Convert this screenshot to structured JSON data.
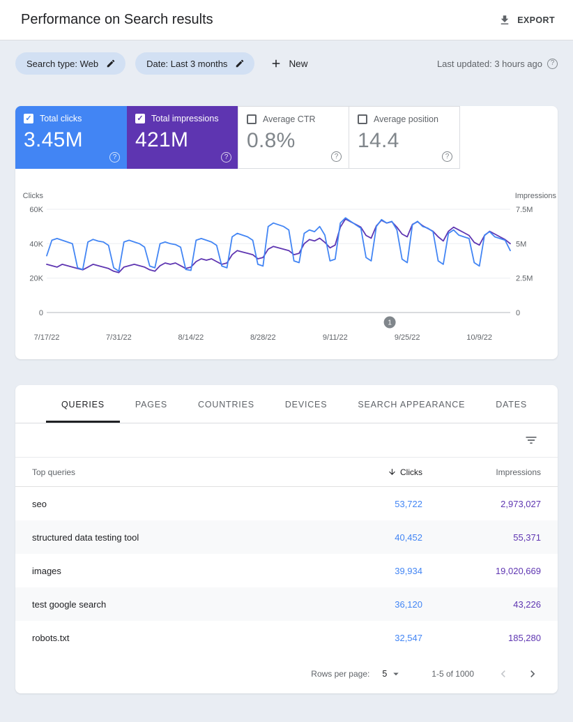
{
  "header": {
    "title": "Performance on Search results",
    "export_label": "EXPORT"
  },
  "filters": {
    "search_type_chip": "Search type: Web",
    "date_chip": "Date: Last 3 months",
    "new_label": "New",
    "last_updated": "Last updated: 3 hours ago"
  },
  "metrics": [
    {
      "label": "Total clicks",
      "value": "3.45M",
      "checked": true,
      "color": "#4285f4"
    },
    {
      "label": "Total impressions",
      "value": "421M",
      "checked": true,
      "color": "#5e35b1"
    },
    {
      "label": "Average CTR",
      "value": "0.8%",
      "checked": false
    },
    {
      "label": "Average position",
      "value": "14.4",
      "checked": false
    }
  ],
  "chart_data": {
    "type": "line",
    "title": "Clicks and impressions over last 3 months (daily)",
    "x_labels": [
      "7/17/22",
      "7/31/22",
      "8/14/22",
      "8/28/22",
      "9/11/22",
      "9/25/22",
      "10/9/22"
    ],
    "x_label_indices": [
      0,
      14,
      28,
      42,
      56,
      70,
      84
    ],
    "left_axis": {
      "title": "Clicks",
      "ticks": [
        "0",
        "20K",
        "40K",
        "60K"
      ],
      "max": 60,
      "unit": "thousands"
    },
    "right_axis": {
      "title": "Impressions",
      "ticks": [
        "0",
        "2.5M",
        "5M",
        "7.5M"
      ],
      "max": 7.5,
      "unit": "millions"
    },
    "grid": true,
    "legend": "none",
    "series": [
      {
        "name": "Total clicks",
        "color": "#4285f4",
        "unit": "thousands of clicks per day",
        "values": [
          33,
          42,
          43,
          42,
          41,
          40,
          26,
          25,
          41,
          42.5,
          41.5,
          41,
          39,
          26,
          24,
          41,
          42,
          41,
          40,
          38,
          27,
          26,
          40,
          41,
          40,
          39.5,
          38,
          25,
          24.5,
          42,
          43,
          42,
          41,
          39,
          27,
          26,
          44,
          46,
          45,
          44,
          42,
          28,
          27,
          50,
          52,
          51,
          50,
          48,
          30,
          29,
          46,
          48,
          47,
          50,
          45,
          30,
          31,
          52,
          55,
          53,
          51,
          49,
          32,
          30,
          50,
          54,
          52,
          53,
          48,
          31,
          29,
          51,
          53,
          50,
          49,
          47,
          30,
          28,
          46,
          48,
          45,
          44,
          43,
          29,
          27,
          45,
          47,
          44,
          43,
          42,
          36
        ]
      },
      {
        "name": "Total impressions",
        "color": "#5e35b1",
        "unit": "millions of impressions per day",
        "values": [
          3.5,
          3.4,
          3.3,
          3.5,
          3.4,
          3.3,
          3.2,
          3.1,
          3.3,
          3.5,
          3.4,
          3.3,
          3.2,
          3.0,
          2.9,
          3.3,
          3.4,
          3.5,
          3.4,
          3.3,
          3.1,
          3.0,
          3.4,
          3.6,
          3.5,
          3.6,
          3.4,
          3.2,
          3.3,
          3.7,
          3.9,
          3.8,
          3.9,
          3.7,
          3.5,
          3.6,
          4.2,
          4.5,
          4.4,
          4.3,
          4.2,
          3.9,
          4.0,
          4.6,
          4.8,
          4.7,
          4.6,
          4.5,
          4.2,
          4.3,
          5.0,
          5.3,
          5.2,
          5.4,
          5.1,
          4.7,
          4.9,
          6.2,
          6.8,
          6.6,
          6.4,
          6.2,
          5.6,
          5.4,
          6.3,
          6.7,
          6.5,
          6.6,
          6.2,
          5.7,
          5.5,
          6.4,
          6.6,
          6.3,
          6.1,
          5.9,
          5.5,
          5.2,
          5.9,
          6.2,
          6.0,
          5.8,
          5.6,
          5.1,
          4.9,
          5.6,
          5.9,
          5.7,
          5.5,
          5.3,
          5.0
        ]
      }
    ],
    "annotation": {
      "label": "1",
      "x_fraction": 0.74
    }
  },
  "table": {
    "tabs": [
      "QUERIES",
      "PAGES",
      "COUNTRIES",
      "DEVICES",
      "SEARCH APPEARANCE",
      "DATES"
    ],
    "active_tab": "QUERIES",
    "active_tab_index": 0,
    "columns": {
      "dimension": "Top queries",
      "clicks": "Clicks",
      "impressions": "Impressions"
    },
    "sort": {
      "column": "Clicks",
      "direction": "desc"
    },
    "rows": [
      {
        "query": "seo",
        "clicks": "53,722",
        "impressions": "2,973,027"
      },
      {
        "query": "structured data testing tool",
        "clicks": "40,452",
        "impressions": "55,371"
      },
      {
        "query": "images",
        "clicks": "39,934",
        "impressions": "19,020,669"
      },
      {
        "query": "test google search",
        "clicks": "36,120",
        "impressions": "43,226"
      },
      {
        "query": "robots.txt",
        "clicks": "32,547",
        "impressions": "185,280"
      }
    ],
    "pagination": {
      "rows_per_page_label": "Rows per page:",
      "rows_per_page": "5",
      "range": "1-5 of 1000"
    }
  }
}
